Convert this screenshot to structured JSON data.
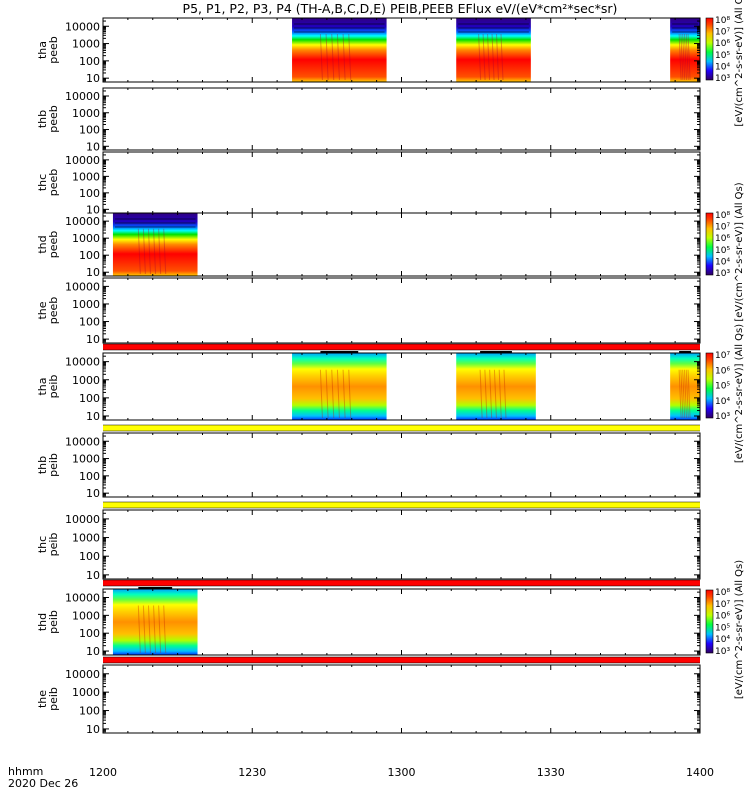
{
  "title": "P5, P1, P2, P3, P4 (TH-A,B,C,D,E) PEIB,PEEB EFlux eV/(eV*cm²*sec*sr)",
  "time_axis": {
    "ticks": [
      "1200",
      "1230",
      "1300",
      "1330",
      "1400"
    ],
    "tick_minutes": [
      0,
      30,
      60,
      90,
      120
    ],
    "range_minutes": [
      0,
      120
    ],
    "label_line1": "hhmm",
    "label_line2": "2020 Dec 26"
  },
  "energy_axis": {
    "scale": "log",
    "range_eV": [
      6,
      30000
    ],
    "ticks": [
      "10",
      "100",
      "1000",
      "10000"
    ]
  },
  "colorbars": [
    {
      "panel": "tha-peeb",
      "label": "[eV/(cm^2-s-sr-eV)] (All Qs)",
      "ticks": [
        "10³",
        "10⁴",
        "10⁵",
        "10⁶",
        "10⁷",
        "10⁸"
      ]
    },
    {
      "panel": "thd-peeb",
      "label": "[eV/(cm^2-s-sr-eV)] (All Qs)",
      "ticks": [
        "10³",
        "10⁴",
        "10⁵",
        "10⁶",
        "10⁷",
        "10⁸"
      ]
    },
    {
      "panel": "tha-peib",
      "label": "[eV/(cm^2-s-sr-eV)] (All Qs)",
      "ticks": [
        "10³",
        "10⁴",
        "10⁵",
        "10⁶",
        "10⁷"
      ]
    },
    {
      "panel": "thd-peib",
      "label": "[eV/(cm^2-s-sr-eV)] (All Qs)",
      "ticks": [
        "10³",
        "10⁴",
        "10⁵",
        "10⁶",
        "10⁷",
        "10⁸"
      ]
    }
  ],
  "colors": {
    "red_bar": "#ff0000",
    "yellow_bar": "#ffff00"
  },
  "chart_data": {
    "type": "heatmap",
    "x_units": "minutes after 12:00 UT",
    "panels": [
      {
        "name": "tha-peeb",
        "ylabel": [
          "tha",
          "peeb"
        ],
        "blocks": [
          [
            38,
            57
          ],
          [
            71,
            86
          ],
          [
            114,
            120
          ]
        ],
        "kind": "electron"
      },
      {
        "name": "thb-peeb",
        "ylabel": [
          "thb",
          "peeb"
        ],
        "blocks": [],
        "kind": "electron"
      },
      {
        "name": "thc-peeb",
        "ylabel": [
          "thc",
          "peeb"
        ],
        "blocks": [],
        "kind": "electron"
      },
      {
        "name": "thd-peeb",
        "ylabel": [
          "thd",
          "peeb"
        ],
        "blocks": [
          [
            2,
            19
          ]
        ],
        "kind": "electron"
      },
      {
        "name": "the-peeb",
        "ylabel": [
          "the",
          "peeb"
        ],
        "blocks": [],
        "kind": "electron"
      },
      {
        "name": "tha-peib",
        "ylabel": [
          "tha",
          "peib"
        ],
        "blocks": [
          [
            38,
            57
          ],
          [
            71,
            87
          ],
          [
            114,
            120
          ]
        ],
        "kind": "ion"
      },
      {
        "name": "thb-peib",
        "ylabel": [
          "thb",
          "peib"
        ],
        "blocks": [],
        "kind": "ion"
      },
      {
        "name": "thc-peib",
        "ylabel": [
          "thc",
          "peib"
        ],
        "blocks": [],
        "kind": "ion"
      },
      {
        "name": "thd-peib",
        "ylabel": [
          "thd",
          "peib"
        ],
        "blocks": [
          [
            2,
            19
          ]
        ],
        "kind": "ion"
      },
      {
        "name": "the-peib",
        "ylabel": [
          "the",
          "peib"
        ],
        "blocks": [],
        "kind": "ion"
      }
    ],
    "separators": [
      {
        "after_panel": "the-peeb",
        "color": "red"
      },
      {
        "after_panel": "tha-peib",
        "color": "yellow"
      },
      {
        "after_panel": "thb-peib",
        "color": "yellow"
      },
      {
        "after_panel": "thc-peib",
        "color": "red"
      },
      {
        "after_panel": "thd-peib",
        "color": "red"
      }
    ]
  }
}
